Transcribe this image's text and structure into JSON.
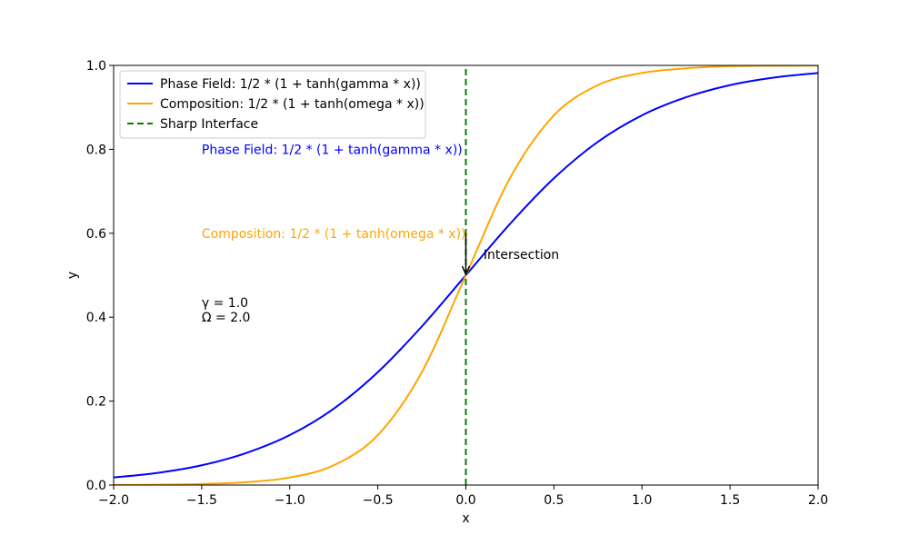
{
  "chart_data": {
    "type": "line",
    "title": "",
    "xlabel": "x",
    "ylabel": "y",
    "xlim": [
      -2.0,
      2.0
    ],
    "ylim": [
      0.0,
      1.0
    ],
    "xticks": [
      -2.0,
      -1.5,
      -1.0,
      -0.5,
      0.0,
      0.5,
      1.0,
      1.5,
      2.0
    ],
    "xtick_labels": [
      "−2.0",
      "−1.5",
      "−1.0",
      "−0.5",
      "0.0",
      "0.5",
      "1.0",
      "1.5",
      "2.0"
    ],
    "yticks": [
      0.0,
      0.2,
      0.4,
      0.6,
      0.8,
      1.0
    ],
    "ytick_labels": [
      "0.0",
      "0.2",
      "0.4",
      "0.6",
      "0.8",
      "1.0"
    ],
    "grid": false,
    "legend_position": "top-left",
    "series": [
      {
        "name": "Phase Field: 1/2 * (1 + tanh(gamma * x))",
        "color": "#0000ff",
        "style": "solid",
        "x": [
          -2.0,
          -1.75,
          -1.5,
          -1.25,
          -1.0,
          -0.75,
          -0.5,
          -0.25,
          0.0,
          0.25,
          0.5,
          0.75,
          1.0,
          1.25,
          1.5,
          1.75,
          2.0
        ],
        "y": [
          0.018,
          0.029,
          0.047,
          0.076,
          0.119,
          0.182,
          0.269,
          0.378,
          0.5,
          0.622,
          0.731,
          0.818,
          0.881,
          0.924,
          0.953,
          0.971,
          0.982
        ]
      },
      {
        "name": "Composition: 1/2 * (1 + tanh(omega * x))",
        "color": "#ffa500",
        "style": "solid",
        "x": [
          -2.0,
          -1.75,
          -1.5,
          -1.25,
          -1.0,
          -0.75,
          -0.5,
          -0.25,
          0.0,
          0.25,
          0.5,
          0.75,
          1.0,
          1.25,
          1.5,
          1.75,
          2.0
        ],
        "y": [
          0.0003,
          0.0009,
          0.0025,
          0.0067,
          0.018,
          0.047,
          0.119,
          0.269,
          0.5,
          0.731,
          0.881,
          0.953,
          0.982,
          0.993,
          0.998,
          0.999,
          0.9997
        ]
      },
      {
        "name": "Sharp Interface",
        "color": "#008000",
        "style": "dashed",
        "x": [
          0.0,
          0.0
        ],
        "y": [
          0.0,
          1.0
        ]
      }
    ],
    "annotations": [
      {
        "text": "Phase Field: 1/2 * (1 + tanh(gamma * x))",
        "x": -1.5,
        "y": 0.8,
        "color": "#0000ff"
      },
      {
        "text": "Composition: 1/2 * (1 + tanh(omega * x))",
        "x": -1.5,
        "y": 0.6,
        "color": "#ffa500"
      },
      {
        "text": "γ = 1.0",
        "x": -1.5,
        "y": 0.435,
        "color": "#000000"
      },
      {
        "text": "Ω = 2.0",
        "x": -1.5,
        "y": 0.4,
        "color": "#000000"
      }
    ],
    "arrow_annotation": {
      "text": "Intersection",
      "text_x": 0.1,
      "text_y": 0.55,
      "point_x": 0.0,
      "point_y": 0.5,
      "color": "#000000"
    }
  }
}
